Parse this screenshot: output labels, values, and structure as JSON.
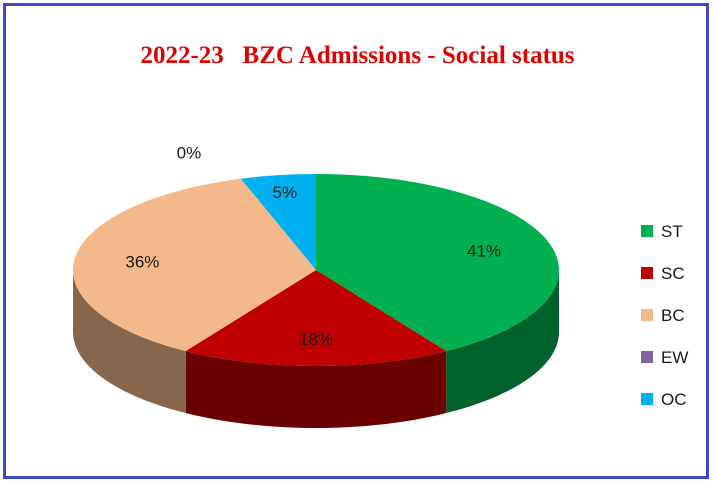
{
  "chart_data": {
    "type": "pie",
    "title": "2022-23   BZC Admissions - Social status",
    "categories": [
      "ST",
      "SC",
      "BC",
      "EW",
      "OC"
    ],
    "values": [
      41,
      18,
      36,
      0,
      5
    ],
    "labels": [
      "41%",
      "18%",
      "36%",
      "0%",
      "5%"
    ],
    "colors": [
      "#00b050",
      "#c00000",
      "#f4b98b",
      "#8064a2",
      "#00b0f0"
    ],
    "legend_position": "right",
    "style": "3d"
  }
}
